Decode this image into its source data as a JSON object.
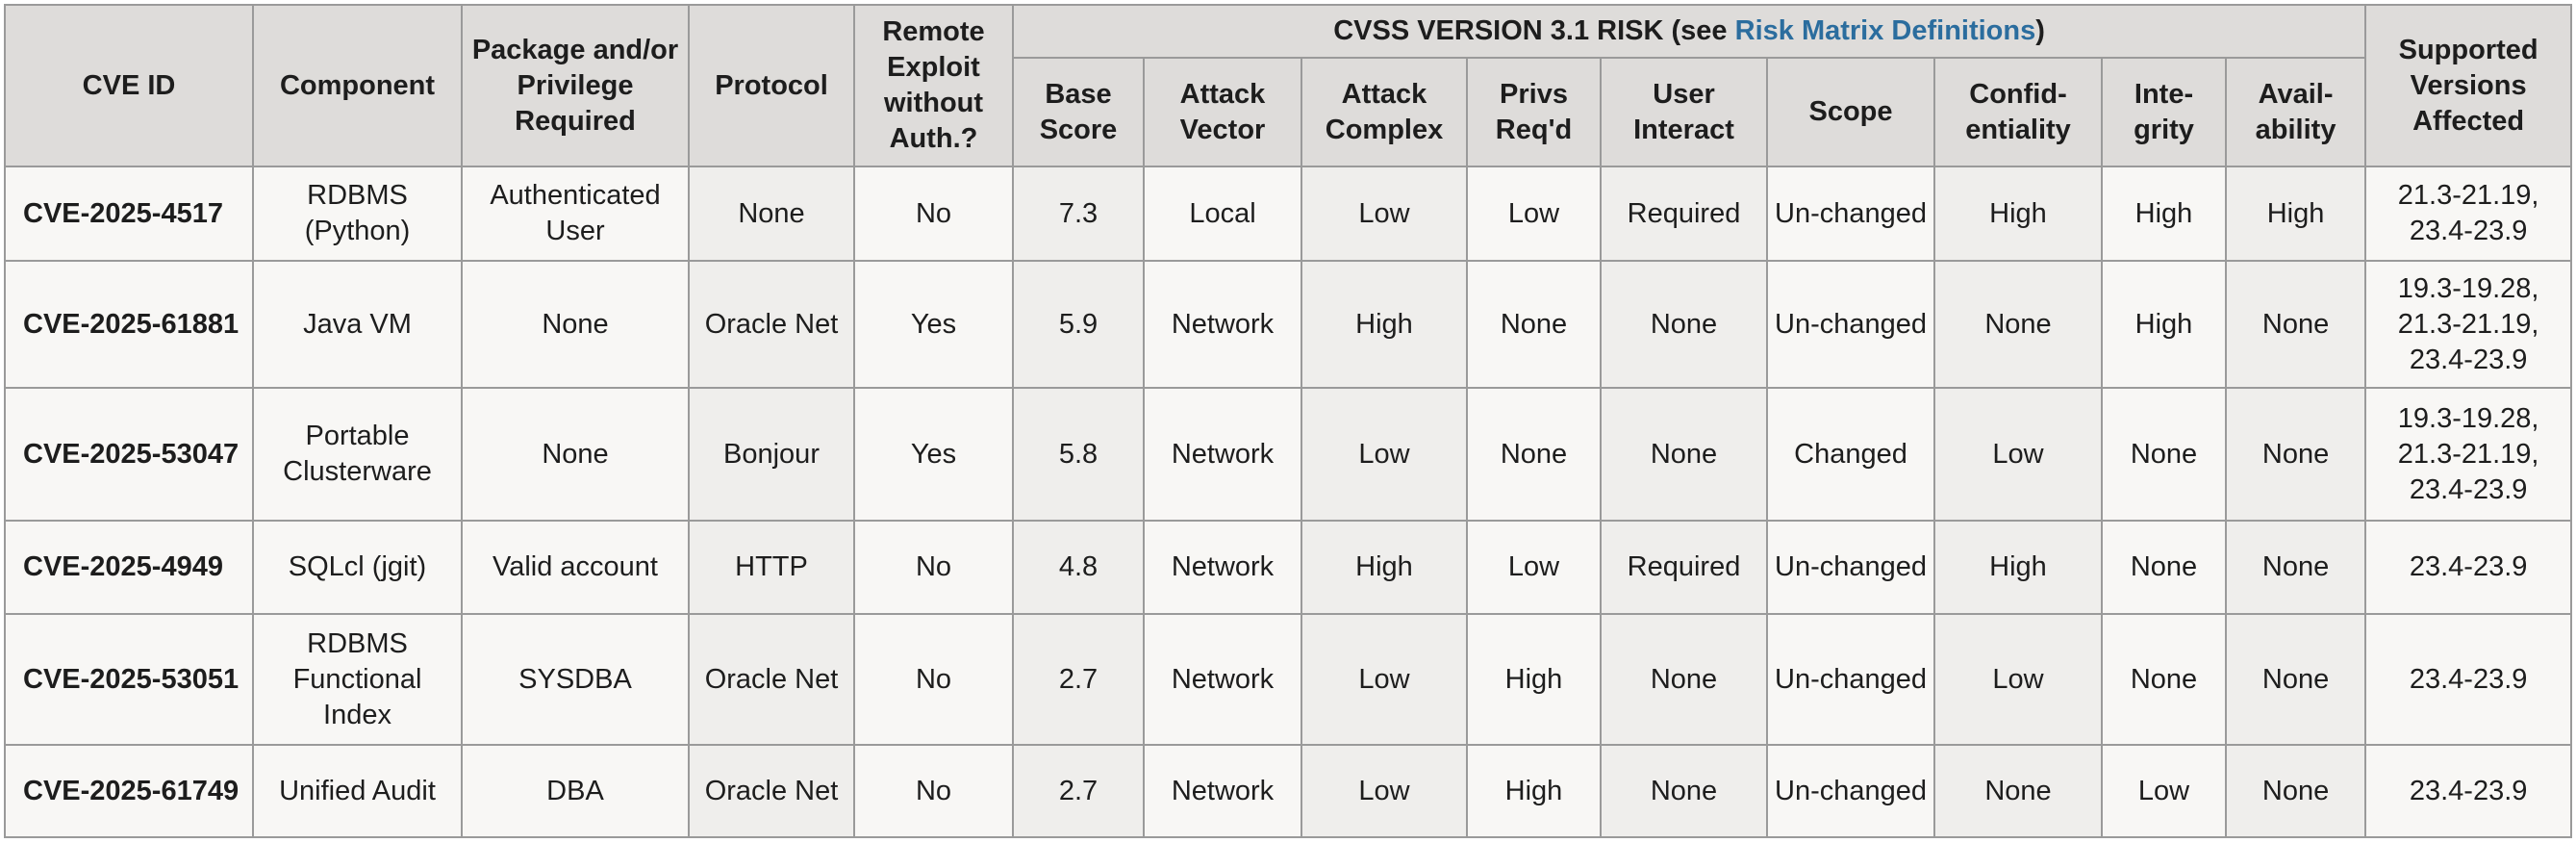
{
  "table": {
    "headers": {
      "cve_id": "CVE ID",
      "component": "Component",
      "package": "Package and/or Privilege Required",
      "protocol": "Protocol",
      "remote": "Remote Exploit without Auth.?",
      "cvss_prefix": "CVSS VERSION 3.1 RISK (see ",
      "cvss_link": "Risk Matrix Definitions",
      "cvss_suffix": ")",
      "base_score": "Base Score",
      "attack_vector": "Attack Vector",
      "attack_complex": "Attack Complex",
      "privs": "Privs Req'd",
      "user_interact": "User Interact",
      "scope": "Scope",
      "confidentiality": "Confid-entiality",
      "integrity": "Inte-grity",
      "availability": "Avail-ability",
      "supported": "Supported Versions Affected"
    },
    "rows": [
      {
        "cve": "CVE-2025-4517",
        "component": "RDBMS (Python)",
        "package": "Authenticated User",
        "protocol": "None",
        "remote": "No",
        "base": "7.3",
        "vector": "Local",
        "complex": "Low",
        "privs": "Low",
        "ui": "Required",
        "scope": "Un-changed",
        "conf": "High",
        "integ": "High",
        "avail": "High",
        "versions": "21.3-21.19, 23.4-23.9"
      },
      {
        "cve": "CVE-2025-61881",
        "component": "Java VM",
        "package": "None",
        "protocol": "Oracle Net",
        "remote": "Yes",
        "base": "5.9",
        "vector": "Network",
        "complex": "High",
        "privs": "None",
        "ui": "None",
        "scope": "Un-changed",
        "conf": "None",
        "integ": "High",
        "avail": "None",
        "versions": "19.3-19.28, 21.3-21.19, 23.4-23.9"
      },
      {
        "cve": "CVE-2025-53047",
        "component": "Portable Clusterware",
        "package": "None",
        "protocol": "Bonjour",
        "remote": "Yes",
        "base": "5.8",
        "vector": "Network",
        "complex": "Low",
        "privs": "None",
        "ui": "None",
        "scope": "Changed",
        "conf": "Low",
        "integ": "None",
        "avail": "None",
        "versions": "19.3-19.28, 21.3-21.19, 23.4-23.9"
      },
      {
        "cve": "CVE-2025-4949",
        "component": "SQLcl (jgit)",
        "package": "Valid account",
        "protocol": "HTTP",
        "remote": "No",
        "base": "4.8",
        "vector": "Network",
        "complex": "High",
        "privs": "Low",
        "ui": "Required",
        "scope": "Un-changed",
        "conf": "High",
        "integ": "None",
        "avail": "None",
        "versions": "23.4-23.9"
      },
      {
        "cve": "CVE-2025-53051",
        "component": "RDBMS Functional Index",
        "package": "SYSDBA",
        "protocol": "Oracle Net",
        "remote": "No",
        "base": "2.7",
        "vector": "Network",
        "complex": "Low",
        "privs": "High",
        "ui": "None",
        "scope": "Un-changed",
        "conf": "Low",
        "integ": "None",
        "avail": "None",
        "versions": "23.4-23.9"
      },
      {
        "cve": "CVE-2025-61749",
        "component": "Unified Audit",
        "package": "DBA",
        "protocol": "Oracle Net",
        "remote": "No",
        "base": "2.7",
        "vector": "Network",
        "complex": "Low",
        "privs": "High",
        "ui": "None",
        "scope": "Un-changed",
        "conf": "None",
        "integ": "Low",
        "avail": "None",
        "versions": "23.4-23.9"
      }
    ]
  },
  "colors": {
    "header_bg": "#dedcda",
    "cell_bg": "#f8f7f5",
    "alt_cell_bg": "#efeeec",
    "border": "#9a9a9a",
    "link": "#2b6d9e"
  }
}
